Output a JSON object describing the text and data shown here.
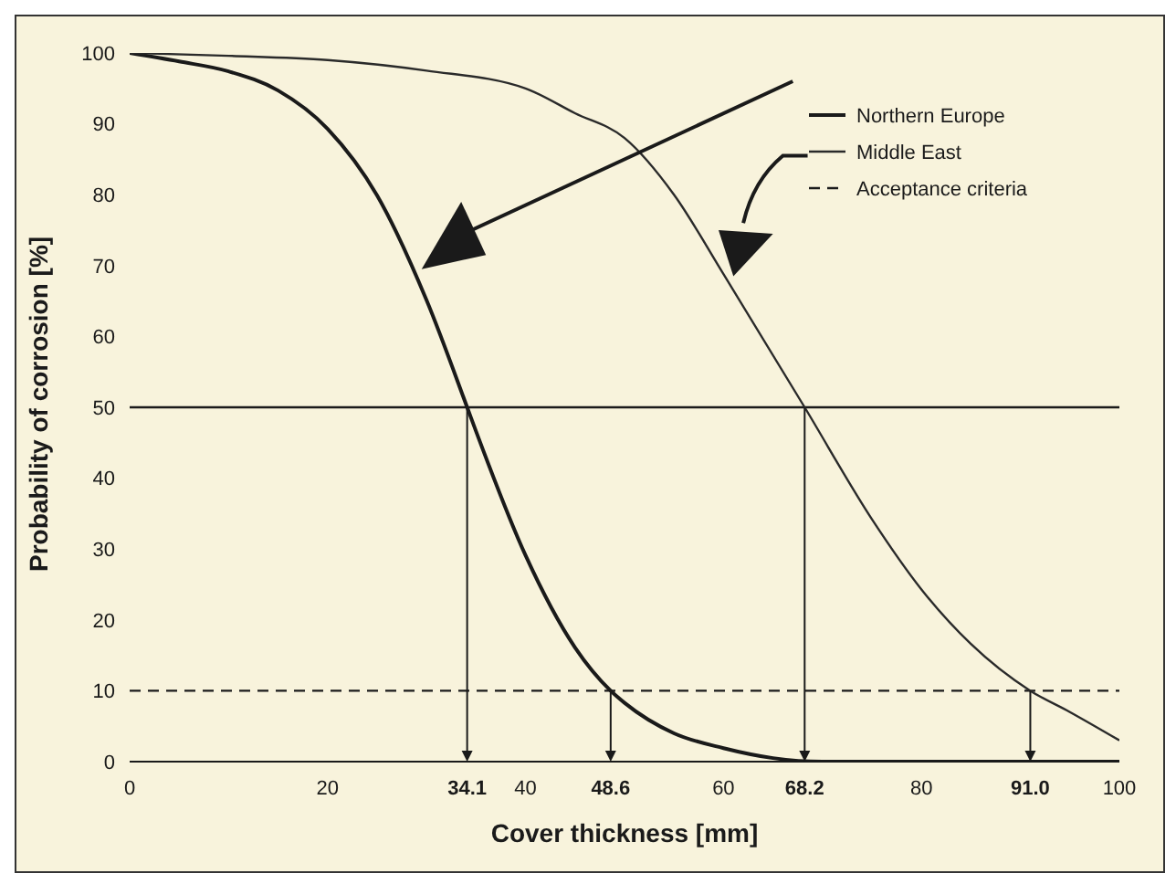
{
  "chart_data": {
    "type": "line",
    "xlabel": "Cover thickness [mm]",
    "ylabel": "Probability of corrosion [%]",
    "xlim": [
      0,
      100
    ],
    "ylim": [
      0,
      100
    ],
    "xticks": [
      0,
      20,
      {
        "value": 34.1,
        "label": "34.1"
      },
      40,
      {
        "value": 48.6,
        "label": "48.6"
      },
      60,
      {
        "value": 68.2,
        "label": "68.2"
      },
      80,
      {
        "value": 91.0,
        "label": "91.0"
      },
      100
    ],
    "yticks": [
      0,
      10,
      20,
      30,
      40,
      50,
      60,
      70,
      80,
      90,
      100
    ],
    "grid": false,
    "legend": "top right",
    "line_style": "solid",
    "series": [
      {
        "name": "Northern Europe",
        "color": "#1a1a1a",
        "x": [
          0,
          5,
          10,
          15,
          20,
          25,
          30,
          34.1,
          35,
          40,
          45,
          48.6,
          50,
          55,
          60,
          65,
          70,
          80,
          90,
          100
        ],
        "values": [
          100,
          98.8,
          97.4,
          94.7,
          89.3,
          79.9,
          65.1,
          50,
          46.6,
          29.1,
          16.1,
          10,
          8.3,
          4,
          1.9,
          0.5,
          0,
          0,
          0,
          0
        ]
      },
      {
        "name": "Middle East",
        "color": "#2a2a2a",
        "x": [
          0,
          10,
          20,
          30,
          40,
          45,
          50,
          55,
          60,
          68.2,
          75,
          80,
          85,
          91,
          95,
          100
        ],
        "values": [
          100,
          99.6,
          99,
          97.5,
          95,
          91.5,
          88,
          80,
          68.8,
          50,
          34.2,
          24.3,
          16.6,
          10,
          7,
          3
        ]
      }
    ],
    "ref_lines": [
      {
        "axis": "y",
        "value": 50,
        "color": "#1a1a1a",
        "line_style": "solid"
      },
      {
        "axis": "y",
        "value": 10,
        "label": "Acceptance criteria",
        "color": "#1a1a1a",
        "line_style": "dashed"
      }
    ]
  }
}
